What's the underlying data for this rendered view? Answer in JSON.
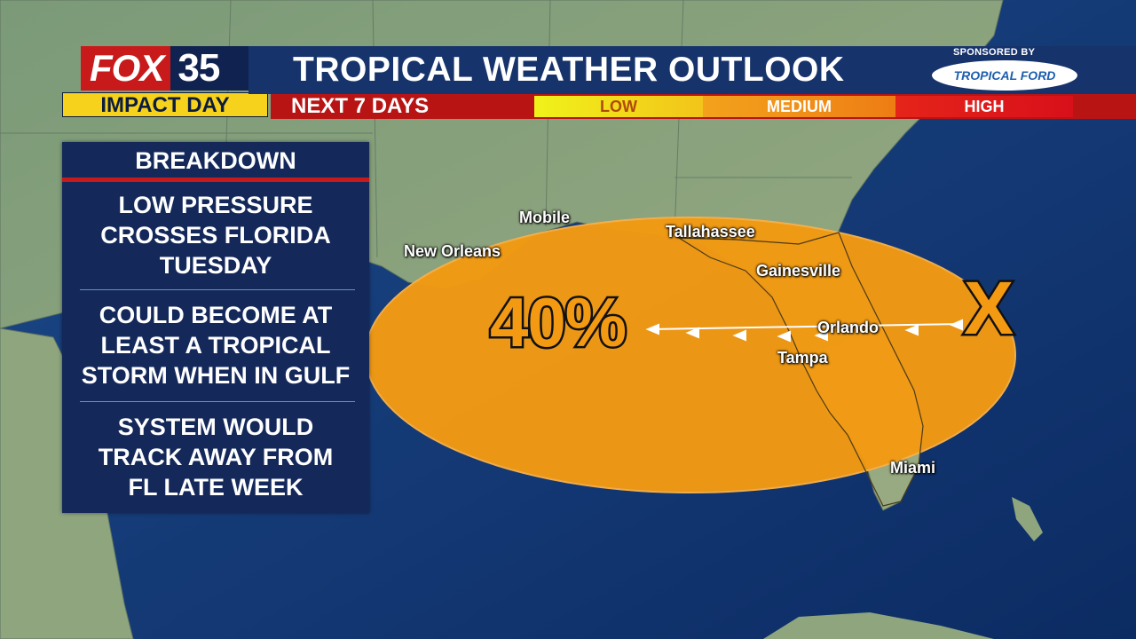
{
  "header": {
    "logo_brand": "FOX",
    "logo_number": "35",
    "impact_label": "IMPACT DAY",
    "title": "TROPICAL WEATHER OUTLOOK",
    "sponsor_label": "SPONSORED BY",
    "sponsor_logo_text": "TROPICAL FORD",
    "period": "NEXT 7 DAYS",
    "scale": [
      {
        "label": "LOW",
        "color": "#f0f21a"
      },
      {
        "label": "MEDIUM",
        "color": "#f39a12"
      },
      {
        "label": "HIGH",
        "color": "#d8101a"
      }
    ]
  },
  "breakdown": {
    "title": "BREAKDOWN",
    "items": [
      "LOW PRESSURE\nCROSSES FLORIDA\nTUESDAY",
      "COULD BECOME AT\nLEAST A TROPICAL\nSTORM WHEN IN GULF",
      "SYSTEM WOULD\nTRACK AWAY FROM\nFL LATE WEEK"
    ]
  },
  "map": {
    "probability": "40%",
    "disturbance_marker": "X",
    "outlook_color": "#f39a12",
    "cities": [
      "Mobile",
      "Tallahassee",
      "New Orleans",
      "Gainesville",
      "Orlando",
      "Tampa",
      "Miami"
    ]
  }
}
